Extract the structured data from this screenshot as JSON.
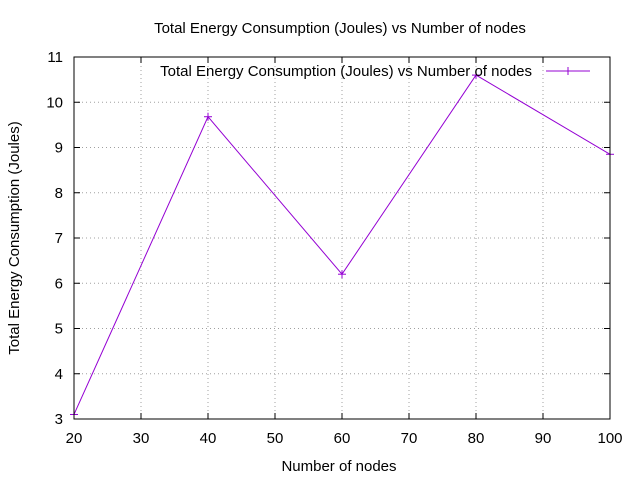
{
  "chart_data": {
    "type": "line",
    "title": "Total Energy Consumption (Joules) vs Number of nodes",
    "xlabel": "Number of nodes",
    "ylabel": "Total Energy Consumption (Joules)",
    "xlim": [
      20,
      100
    ],
    "ylim": [
      3,
      11
    ],
    "xticks": [
      20,
      30,
      40,
      50,
      60,
      70,
      80,
      90,
      100
    ],
    "yticks": [
      3,
      4,
      5,
      6,
      7,
      8,
      9,
      10,
      11
    ],
    "grid": true,
    "legend_position": "top-right",
    "series": [
      {
        "name": "Total Energy Consumption (Joules) vs Number of nodes",
        "color": "#9400d3",
        "marker": "plus",
        "x": [
          20,
          40,
          60,
          80,
          100
        ],
        "y": [
          3.1,
          9.68,
          6.2,
          10.6,
          8.85
        ]
      }
    ]
  }
}
